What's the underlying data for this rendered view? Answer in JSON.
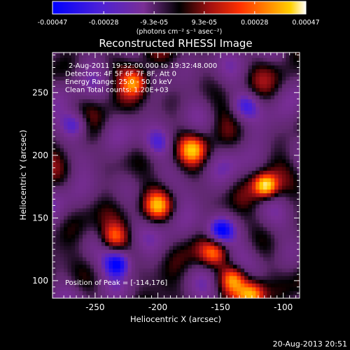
{
  "colorbar": {
    "tick_labels": [
      "-0.00047",
      "-0.00028",
      "-9.3e-05",
      "9.3e-05",
      "0.00028",
      "0.00047"
    ],
    "tick_values": [
      -0.00047,
      -0.00028,
      -9.3e-05,
      9.3e-05,
      0.00028,
      0.00047
    ],
    "range": [
      -0.00047,
      0.00047
    ],
    "units_label": "(photons cm⁻² s⁻¹ asec⁻²)"
  },
  "chart_data": {
    "type": "heatmap",
    "title": "Reconstructed RHESSI Image",
    "xlabel": "Heliocentric X (arcsec)",
    "ylabel": "Heliocentric Y (arcsec)",
    "xlim": [
      -284,
      -87
    ],
    "ylim": [
      86,
      282
    ],
    "xticks": [
      -250,
      -200,
      -150,
      -100
    ],
    "xtick_labels": [
      "-250",
      "-200",
      "-150",
      "-100"
    ],
    "yticks": [
      100,
      150,
      200,
      250
    ],
    "ytick_labels": [
      "100",
      "150",
      "200",
      "250"
    ],
    "peak_position": [
      -114,
      176
    ],
    "colormap": [
      "#0000ff",
      "#5520d0",
      "#7a2f95",
      "#000000",
      "#a01010",
      "#ff3000",
      "#ff8a00",
      "#ffd000",
      "#ffffff"
    ],
    "notable_sources": [
      {
        "x": -114,
        "y": 176,
        "value": 0.00047
      },
      {
        "x": -218,
        "y": 258,
        "value": 0.00033
      },
      {
        "x": -172,
        "y": 205,
        "value": 0.0003
      },
      {
        "x": -140,
        "y": 102,
        "value": 0.00036
      },
      {
        "x": -125,
        "y": 89,
        "value": 0.0004
      },
      {
        "x": -235,
        "y": 135,
        "value": 0.00028
      },
      {
        "x": -200,
        "y": 160,
        "value": 0.0003
      },
      {
        "x": -155,
        "y": 122,
        "value": 0.00025
      },
      {
        "x": -265,
        "y": 225,
        "value": -0.0003
      },
      {
        "x": -130,
        "y": 240,
        "value": -0.00025
      },
      {
        "x": -200,
        "y": 210,
        "value": -0.0002
      },
      {
        "x": -232,
        "y": 114,
        "value": -0.0004
      },
      {
        "x": -150,
        "y": 140,
        "value": -0.00045
      }
    ],
    "annotations": [
      "2-Aug-2011 19:32:00.000 to 19:32:48.000",
      "Detectors: 4F 5F 6F 7F 8F, Att 0",
      "Energy Range: 25.0 - 50.0 keV",
      "Clean     Total counts: 1.20E+03"
    ],
    "peak_label": "Position of Peak = [-114,176]"
  },
  "footer": {
    "timestamp": "20-Aug-2013 20:51"
  }
}
